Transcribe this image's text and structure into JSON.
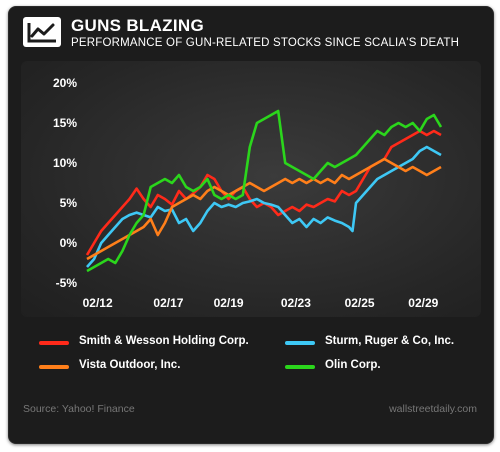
{
  "header": {
    "title": "GUNS BLAZING",
    "subtitle": "PERFORMANCE OF GUN-RELATED STOCKS SINCE SCALIA'S DEATH",
    "logo_icon": "line-chart-icon"
  },
  "footer": {
    "source": "Source: Yahoo! Finance",
    "brand": "wallstreetdaily.com"
  },
  "chart_data": {
    "type": "line",
    "title": "GUNS BLAZING",
    "subtitle": "PERFORMANCE OF GUN-RELATED STOCKS SINCE SCALIA'S DEATH",
    "xlabel": "",
    "ylabel": "",
    "ylim": [
      -5,
      20
    ],
    "xlim": [
      0,
      100
    ],
    "y_ticks": [
      "20%",
      "15%",
      "10%",
      "5%",
      "0%",
      "-5%"
    ],
    "y_tick_values": [
      20,
      15,
      10,
      5,
      0,
      -5
    ],
    "x_ticks": [
      "02/12",
      "02/17",
      "02/19",
      "02/23",
      "02/25",
      "02/29"
    ],
    "x_tick_values": [
      3,
      23,
      40,
      59,
      77,
      95
    ],
    "grid": false,
    "legend_position": "bottom",
    "series": [
      {
        "name": "Smith & Wesson Holding Corp.",
        "color": "#ff2a1a",
        "x": [
          0,
          2,
          4,
          6,
          8,
          10,
          12,
          14,
          16,
          18,
          20,
          22,
          24,
          26,
          28,
          30,
          32,
          34,
          36,
          38,
          40,
          42,
          44,
          46,
          48,
          50,
          52,
          54,
          56,
          58,
          60,
          62,
          64,
          66,
          68,
          70,
          72,
          74,
          76,
          78,
          80,
          82,
          84,
          86,
          88,
          90,
          92,
          94,
          96,
          98,
          100
        ],
        "y": [
          -1.5,
          0,
          1.5,
          2.5,
          3.5,
          4.5,
          5.5,
          6.8,
          5.5,
          4.5,
          6,
          5.5,
          4.8,
          6.5,
          5.5,
          6.2,
          7,
          8.5,
          8,
          6.5,
          5.5,
          6.5,
          7,
          5.5,
          4.5,
          5,
          4.5,
          3.5,
          4,
          4.5,
          4,
          4.8,
          4.5,
          5,
          5.5,
          5.2,
          6.5,
          6,
          6.5,
          8,
          9.5,
          10,
          10.5,
          12,
          12.5,
          13,
          13.5,
          14,
          13.5,
          14,
          13.5
        ]
      },
      {
        "name": "Sturm, Ruger & Co, Inc.",
        "color": "#3ec8f5",
        "x": [
          0,
          2,
          4,
          6,
          8,
          10,
          12,
          14,
          16,
          18,
          20,
          22,
          24,
          26,
          28,
          30,
          32,
          34,
          36,
          38,
          40,
          42,
          44,
          46,
          48,
          50,
          52,
          54,
          56,
          58,
          60,
          62,
          64,
          66,
          68,
          70,
          72,
          74,
          75,
          76,
          78,
          80,
          82,
          84,
          86,
          88,
          90,
          92,
          94,
          96,
          98,
          100
        ],
        "y": [
          -3,
          -2,
          0,
          1,
          2,
          3,
          3.5,
          3.8,
          3.5,
          3.2,
          4.5,
          4,
          4.2,
          2.5,
          3,
          1.5,
          2.5,
          4,
          5,
          4.5,
          4.8,
          4.5,
          5,
          5.2,
          5.5,
          5,
          4.8,
          4.5,
          3.5,
          2.5,
          3,
          2,
          3,
          2.5,
          3.2,
          2.8,
          2.5,
          2,
          1.5,
          5,
          6,
          7,
          8,
          8.5,
          9,
          9.5,
          10,
          10.5,
          11.5,
          12,
          11.5,
          11
        ]
      },
      {
        "name": "Vista Outdoor, Inc.",
        "color": "#ff7f1a",
        "x": [
          0,
          2,
          4,
          6,
          8,
          10,
          12,
          14,
          16,
          18,
          20,
          22,
          24,
          26,
          28,
          30,
          32,
          34,
          36,
          38,
          40,
          42,
          44,
          46,
          48,
          50,
          52,
          54,
          56,
          58,
          60,
          62,
          64,
          66,
          68,
          70,
          72,
          74,
          76,
          78,
          80,
          82,
          84,
          86,
          88,
          90,
          92,
          94,
          96,
          98,
          100
        ],
        "y": [
          -2,
          -1.5,
          -1,
          -0.5,
          0,
          0.5,
          1,
          1.5,
          2,
          3,
          1,
          2.5,
          4.5,
          5,
          5.5,
          6,
          5.5,
          6.5,
          7,
          6.5,
          6,
          6.5,
          7,
          7.5,
          7,
          6.5,
          7,
          7.5,
          8,
          7.5,
          8,
          7.5,
          8,
          7.5,
          8,
          7.5,
          8.5,
          8,
          8.5,
          9,
          9.5,
          10,
          10.5,
          10,
          9.5,
          9,
          9.5,
          9,
          8.5,
          9,
          9.5
        ]
      },
      {
        "name": "Olin Corp.",
        "color": "#2bd61c",
        "x": [
          0,
          2,
          4,
          6,
          8,
          10,
          12,
          14,
          16,
          18,
          20,
          22,
          24,
          26,
          28,
          30,
          32,
          34,
          36,
          38,
          40,
          42,
          44,
          46,
          48,
          50,
          52,
          54,
          56,
          58,
          60,
          62,
          64,
          66,
          68,
          70,
          72,
          74,
          76,
          78,
          80,
          82,
          84,
          86,
          88,
          90,
          92,
          94,
          96,
          98,
          100
        ],
        "y": [
          -3.5,
          -3,
          -2.5,
          -2,
          -2.5,
          -1,
          1,
          2.5,
          3.5,
          7,
          7.5,
          8,
          7.5,
          8.5,
          7,
          6.5,
          7,
          8,
          6,
          5.5,
          6,
          5.5,
          6,
          12,
          15,
          15.5,
          16,
          16.5,
          10,
          9.5,
          9,
          8.5,
          8,
          9,
          10,
          9.5,
          10,
          10.5,
          11,
          12,
          13,
          14,
          13.5,
          14.5,
          15,
          14.5,
          15,
          14,
          15.5,
          16,
          14.5
        ]
      }
    ]
  }
}
